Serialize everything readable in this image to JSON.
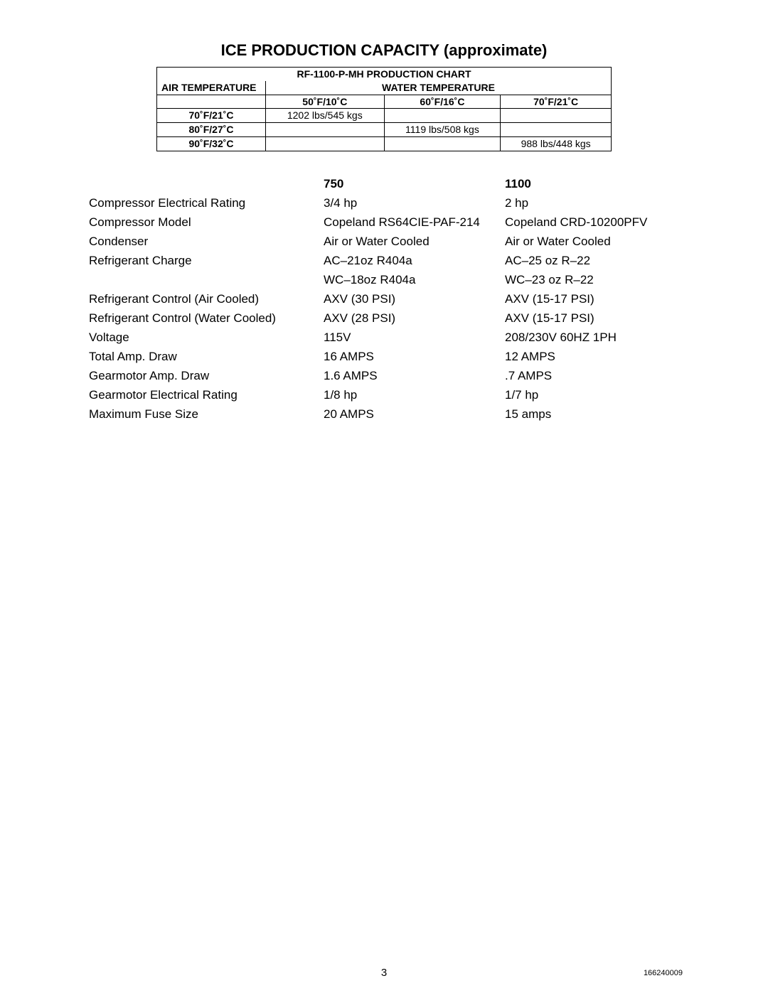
{
  "title": "ICE PRODUCTION CAPACITY (approximate)",
  "production_table": {
    "chart_label": "RF-1100-P-MH PRODUCTION CHART",
    "air_temp_label": "AIR TEMPERATURE",
    "water_temp_label": "WATER TEMPERATURE",
    "water_temps": [
      "50˚F/10˚C",
      "60˚F/16˚C",
      "70˚F/21˚C"
    ],
    "rows": [
      {
        "air": "70˚F/21˚C",
        "vals": [
          "1202 lbs/545 kgs",
          "",
          ""
        ]
      },
      {
        "air": "80˚F/27˚C",
        "vals": [
          "",
          "1119 lbs/508 kgs",
          ""
        ]
      },
      {
        "air": "90˚F/32˚C",
        "vals": [
          "",
          "",
          "988 lbs/448 kgs"
        ]
      }
    ]
  },
  "spec_table": {
    "headers": {
      "label": "",
      "c1": "750",
      "c2": "1100"
    },
    "rows": [
      {
        "label": "Compressor Electrical Rating",
        "c1": "3/4 hp",
        "c2": "2 hp"
      },
      {
        "label": "Compressor Model",
        "c1": "Copeland RS64CIE-PAF-214",
        "c2": "Copeland CRD-10200PFV"
      },
      {
        "label": "Condenser",
        "c1": "Air or Water Cooled",
        "c2": "Air or Water Cooled"
      },
      {
        "label": "Refrigerant Charge",
        "c1": "AC–21oz R404a",
        "c2": "AC–25 oz  R–22"
      },
      {
        "label": "",
        "c1": "WC–18oz R404a",
        "c2": "WC–23 oz R–22"
      },
      {
        "label": "Refrigerant Control (Air Cooled)",
        "c1": "AXV (30 PSI)",
        "c2": "AXV (15-17 PSI)"
      },
      {
        "label": "Refrigerant Control (Water Cooled)",
        "c1": "AXV (28 PSI)",
        "c2": "AXV (15-17 PSI)"
      },
      {
        "label": "Voltage",
        "c1": "115V",
        "c2": "208/230V 60HZ 1PH"
      },
      {
        "label": "Total Amp. Draw",
        "c1": "16 AMPS",
        "c2": "12 AMPS"
      },
      {
        "label": "Gearmotor Amp. Draw",
        "c1": "1.6 AMPS",
        "c2": ".7 AMPS"
      },
      {
        "label": "Gearmotor Electrical Rating",
        "c1": "1/8 hp",
        "c2": "1/7 hp"
      },
      {
        "label": "Maximum Fuse Size",
        "c1": "20 AMPS",
        "c2": "15 amps"
      }
    ]
  },
  "footer": {
    "page": "3",
    "doc": "166240009"
  }
}
